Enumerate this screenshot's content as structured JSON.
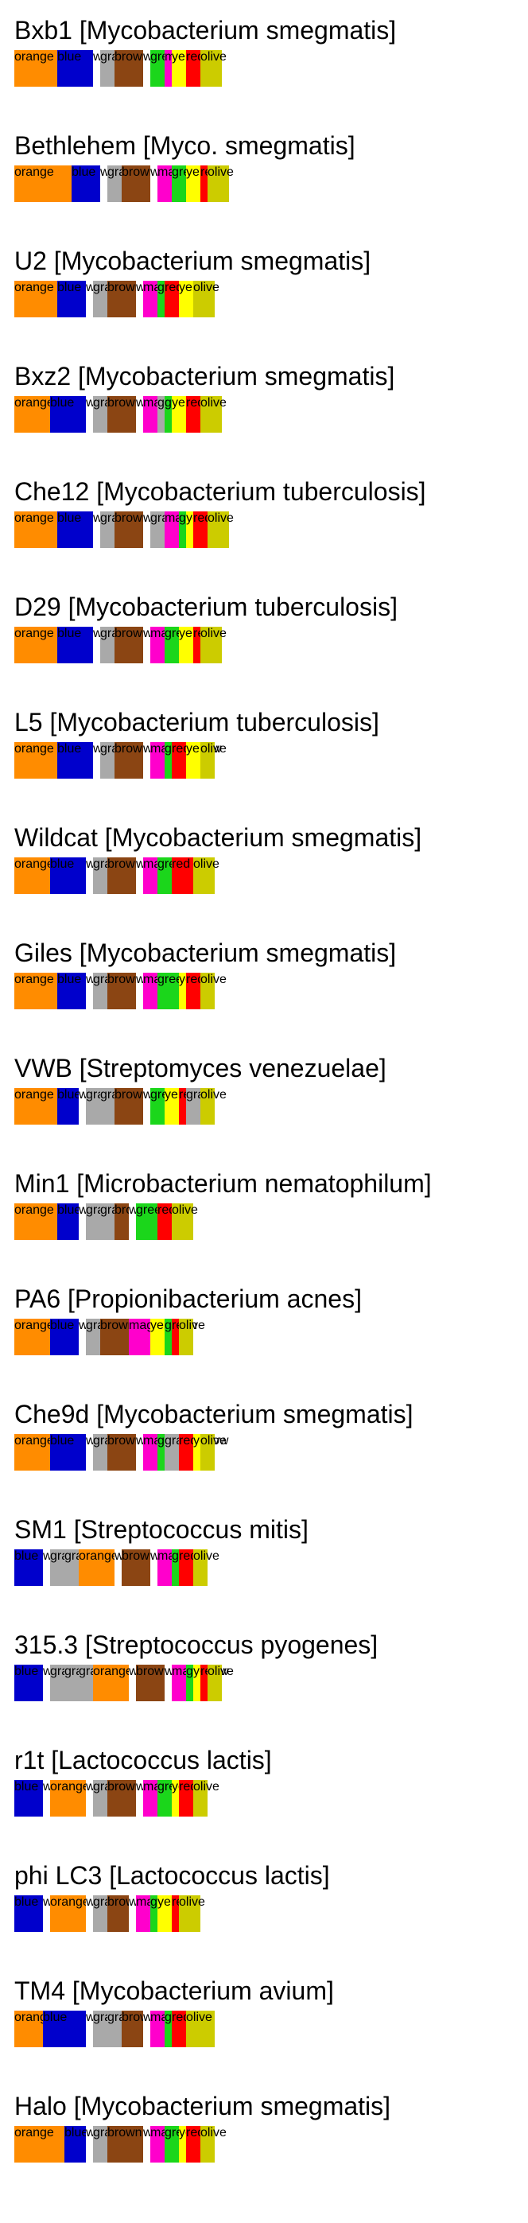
{
  "unit_width": 9,
  "colors": {
    "orange": "#ff8c00",
    "blue": "#0000cc",
    "gray": "#a9a9a9",
    "brown": "#8b4513",
    "magenta": "#ff00cc",
    "green": "#1bd61b",
    "yellow": "#ffff00",
    "red": "#ff0000",
    "olive": "#cccc00",
    "white": "#ffffff"
  },
  "entries": [
    {
      "name": "Bxb1",
      "host": "[Mycobacterium smegmatis]",
      "segments": [
        {
          "c": "orange",
          "w": 6
        },
        {
          "c": "blue",
          "w": 5
        },
        {
          "c": "white",
          "w": 1
        },
        {
          "c": "gray",
          "w": 2
        },
        {
          "c": "brown",
          "w": 4
        },
        {
          "c": "white",
          "w": 1
        },
        {
          "c": "green",
          "w": 2
        },
        {
          "c": "magenta",
          "w": 1
        },
        {
          "c": "yellow",
          "w": 2
        },
        {
          "c": "red",
          "w": 2
        },
        {
          "c": "olive",
          "w": 3
        }
      ]
    },
    {
      "name": "Bethlehem",
      "host": "[Myco. smegmatis]",
      "segments": [
        {
          "c": "orange",
          "w": 8
        },
        {
          "c": "blue",
          "w": 4
        },
        {
          "c": "white",
          "w": 1
        },
        {
          "c": "gray",
          "w": 2
        },
        {
          "c": "brown",
          "w": 4
        },
        {
          "c": "white",
          "w": 1
        },
        {
          "c": "magenta",
          "w": 2
        },
        {
          "c": "green",
          "w": 2
        },
        {
          "c": "yellow",
          "w": 2
        },
        {
          "c": "red",
          "w": 1
        },
        {
          "c": "olive",
          "w": 3
        }
      ]
    },
    {
      "name": "U2",
      "host": "[Mycobacterium smegmatis]",
      "segments": [
        {
          "c": "orange",
          "w": 6
        },
        {
          "c": "blue",
          "w": 4
        },
        {
          "c": "white",
          "w": 1
        },
        {
          "c": "gray",
          "w": 2
        },
        {
          "c": "brown",
          "w": 4
        },
        {
          "c": "white",
          "w": 1
        },
        {
          "c": "magenta",
          "w": 2
        },
        {
          "c": "green",
          "w": 1
        },
        {
          "c": "red",
          "w": 2
        },
        {
          "c": "yellow",
          "w": 2
        },
        {
          "c": "olive",
          "w": 3
        }
      ]
    },
    {
      "name": "Bxz2",
      "host": "[Mycobacterium smegmatis]",
      "segments": [
        {
          "c": "orange",
          "w": 5
        },
        {
          "c": "blue",
          "w": 5
        },
        {
          "c": "white",
          "w": 1
        },
        {
          "c": "gray",
          "w": 2
        },
        {
          "c": "brown",
          "w": 4
        },
        {
          "c": "white",
          "w": 1
        },
        {
          "c": "magenta",
          "w": 2
        },
        {
          "c": "gray",
          "w": 1
        },
        {
          "c": "green",
          "w": 1
        },
        {
          "c": "yellow",
          "w": 2
        },
        {
          "c": "red",
          "w": 2
        },
        {
          "c": "olive",
          "w": 3
        }
      ]
    },
    {
      "name": "Che12",
      "host": "[Mycobacterium tuberculosis]",
      "segments": [
        {
          "c": "orange",
          "w": 6
        },
        {
          "c": "blue",
          "w": 5
        },
        {
          "c": "white",
          "w": 1
        },
        {
          "c": "gray",
          "w": 2
        },
        {
          "c": "brown",
          "w": 4
        },
        {
          "c": "white",
          "w": 1
        },
        {
          "c": "gray",
          "w": 2
        },
        {
          "c": "magenta",
          "w": 2
        },
        {
          "c": "green",
          "w": 1
        },
        {
          "c": "yellow",
          "w": 1
        },
        {
          "c": "red",
          "w": 2
        },
        {
          "c": "olive",
          "w": 3
        }
      ]
    },
    {
      "name": "D29",
      "host": "[Mycobacterium tuberculosis]",
      "segments": [
        {
          "c": "orange",
          "w": 6
        },
        {
          "c": "blue",
          "w": 5
        },
        {
          "c": "white",
          "w": 1
        },
        {
          "c": "gray",
          "w": 2
        },
        {
          "c": "brown",
          "w": 4
        },
        {
          "c": "white",
          "w": 1
        },
        {
          "c": "magenta",
          "w": 2
        },
        {
          "c": "green",
          "w": 2
        },
        {
          "c": "yellow",
          "w": 2
        },
        {
          "c": "red",
          "w": 1
        },
        {
          "c": "olive",
          "w": 3
        }
      ]
    },
    {
      "name": "L5",
      "host": "[Mycobacterium tuberculosis]",
      "segments": [
        {
          "c": "orange",
          "w": 6
        },
        {
          "c": "blue",
          "w": 5
        },
        {
          "c": "white",
          "w": 1
        },
        {
          "c": "gray",
          "w": 2
        },
        {
          "c": "brown",
          "w": 4
        },
        {
          "c": "white",
          "w": 1
        },
        {
          "c": "magenta",
          "w": 2
        },
        {
          "c": "green",
          "w": 1
        },
        {
          "c": "red",
          "w": 2
        },
        {
          "c": "yellow",
          "w": 2
        },
        {
          "c": "olive",
          "w": 2
        }
      ]
    },
    {
      "name": "Wildcat",
      "host": "[Mycobacterium smegmatis]",
      "segments": [
        {
          "c": "orange",
          "w": 5
        },
        {
          "c": "blue",
          "w": 5
        },
        {
          "c": "white",
          "w": 1
        },
        {
          "c": "gray",
          "w": 2
        },
        {
          "c": "brown",
          "w": 4
        },
        {
          "c": "white",
          "w": 1
        },
        {
          "c": "magenta",
          "w": 2
        },
        {
          "c": "green",
          "w": 2
        },
        {
          "c": "red",
          "w": 3
        },
        {
          "c": "olive",
          "w": 3
        }
      ]
    },
    {
      "name": "Giles",
      "host": "[Mycobacterium smegmatis]",
      "segments": [
        {
          "c": "orange",
          "w": 6
        },
        {
          "c": "blue",
          "w": 4
        },
        {
          "c": "white",
          "w": 1
        },
        {
          "c": "gray",
          "w": 2
        },
        {
          "c": "brown",
          "w": 4
        },
        {
          "c": "white",
          "w": 1
        },
        {
          "c": "magenta",
          "w": 2
        },
        {
          "c": "green",
          "w": 3
        },
        {
          "c": "yellow",
          "w": 1
        },
        {
          "c": "red",
          "w": 2
        },
        {
          "c": "olive",
          "w": 2
        }
      ]
    },
    {
      "name": "VWB",
      "host": "[Streptomyces venezuelae]",
      "segments": [
        {
          "c": "orange",
          "w": 6
        },
        {
          "c": "blue",
          "w": 3
        },
        {
          "c": "white",
          "w": 1
        },
        {
          "c": "gray",
          "w": 2
        },
        {
          "c": "gray",
          "w": 2
        },
        {
          "c": "brown",
          "w": 4
        },
        {
          "c": "white",
          "w": 1
        },
        {
          "c": "green",
          "w": 2
        },
        {
          "c": "yellow",
          "w": 2
        },
        {
          "c": "red",
          "w": 1
        },
        {
          "c": "gray",
          "w": 2
        },
        {
          "c": "olive",
          "w": 2
        }
      ]
    },
    {
      "name": "Min1",
      "host": "[Microbacterium nematophilum]",
      "segments": [
        {
          "c": "orange",
          "w": 6
        },
        {
          "c": "blue",
          "w": 3
        },
        {
          "c": "white",
          "w": 1
        },
        {
          "c": "gray",
          "w": 2
        },
        {
          "c": "gray",
          "w": 2
        },
        {
          "c": "brown",
          "w": 2
        },
        {
          "c": "white",
          "w": 1
        },
        {
          "c": "green",
          "w": 3
        },
        {
          "c": "red",
          "w": 2
        },
        {
          "c": "olive",
          "w": 3
        }
      ]
    },
    {
      "name": "PA6",
      "host": "[Propionibacterium acnes]",
      "segments": [
        {
          "c": "orange",
          "w": 5
        },
        {
          "c": "blue",
          "w": 4
        },
        {
          "c": "white",
          "w": 1
        },
        {
          "c": "gray",
          "w": 2
        },
        {
          "c": "brown",
          "w": 4
        },
        {
          "c": "magenta",
          "w": 3
        },
        {
          "c": "yellow",
          "w": 2
        },
        {
          "c": "green",
          "w": 1
        },
        {
          "c": "red",
          "w": 1
        },
        {
          "c": "olive",
          "w": 2
        }
      ]
    },
    {
      "name": "Che9d",
      "host": "[Mycobacterium smegmatis]",
      "segments": [
        {
          "c": "orange",
          "w": 5
        },
        {
          "c": "blue",
          "w": 5
        },
        {
          "c": "white",
          "w": 1
        },
        {
          "c": "gray",
          "w": 2
        },
        {
          "c": "brown",
          "w": 4
        },
        {
          "c": "white",
          "w": 1
        },
        {
          "c": "magenta",
          "w": 2
        },
        {
          "c": "green",
          "w": 1
        },
        {
          "c": "gray",
          "w": 2
        },
        {
          "c": "red",
          "w": 2
        },
        {
          "c": "yellow",
          "w": 1
        },
        {
          "c": "olive",
          "w": 2
        }
      ]
    },
    {
      "name": "SM1",
      "host": "[Streptococcus mitis]",
      "segments": [
        {
          "c": "blue",
          "w": 4
        },
        {
          "c": "white",
          "w": 1
        },
        {
          "c": "gray",
          "w": 2
        },
        {
          "c": "gray",
          "w": 2
        },
        {
          "c": "orange",
          "w": 5
        },
        {
          "c": "white",
          "w": 1
        },
        {
          "c": "brown",
          "w": 4
        },
        {
          "c": "white",
          "w": 1
        },
        {
          "c": "magenta",
          "w": 2
        },
        {
          "c": "green",
          "w": 1
        },
        {
          "c": "red",
          "w": 2
        },
        {
          "c": "olive",
          "w": 2
        }
      ]
    },
    {
      "name": "315.3",
      "host": "[Streptococcus pyogenes]",
      "segments": [
        {
          "c": "blue",
          "w": 4
        },
        {
          "c": "white",
          "w": 1
        },
        {
          "c": "gray",
          "w": 2
        },
        {
          "c": "gray",
          "w": 2
        },
        {
          "c": "gray",
          "w": 2
        },
        {
          "c": "orange",
          "w": 5
        },
        {
          "c": "white",
          "w": 1
        },
        {
          "c": "brown",
          "w": 4
        },
        {
          "c": "white",
          "w": 1
        },
        {
          "c": "magenta",
          "w": 2
        },
        {
          "c": "green",
          "w": 1
        },
        {
          "c": "yellow",
          "w": 1
        },
        {
          "c": "red",
          "w": 1
        },
        {
          "c": "olive",
          "w": 2
        }
      ]
    },
    {
      "name": "r1t",
      "host": "[Lactococcus lactis]",
      "segments": [
        {
          "c": "blue",
          "w": 4
        },
        {
          "c": "white",
          "w": 1
        },
        {
          "c": "orange",
          "w": 5
        },
        {
          "c": "white",
          "w": 1
        },
        {
          "c": "gray",
          "w": 2
        },
        {
          "c": "brown",
          "w": 4
        },
        {
          "c": "white",
          "w": 1
        },
        {
          "c": "magenta",
          "w": 2
        },
        {
          "c": "green",
          "w": 2
        },
        {
          "c": "yellow",
          "w": 1
        },
        {
          "c": "red",
          "w": 2
        },
        {
          "c": "olive",
          "w": 2
        }
      ]
    },
    {
      "name": "phi LC3",
      "host": "[Lactococcus lactis]",
      "segments": [
        {
          "c": "blue",
          "w": 4
        },
        {
          "c": "white",
          "w": 1
        },
        {
          "c": "orange",
          "w": 5
        },
        {
          "c": "white",
          "w": 1
        },
        {
          "c": "gray",
          "w": 2
        },
        {
          "c": "brown",
          "w": 3
        },
        {
          "c": "white",
          "w": 1
        },
        {
          "c": "magenta",
          "w": 2
        },
        {
          "c": "green",
          "w": 1
        },
        {
          "c": "yellow",
          "w": 2
        },
        {
          "c": "red",
          "w": 1
        },
        {
          "c": "olive",
          "w": 3
        }
      ]
    },
    {
      "name": "TM4",
      "host": "[Mycobacterium avium]",
      "segments": [
        {
          "c": "orange",
          "w": 4
        },
        {
          "c": "blue",
          "w": 6
        },
        {
          "c": "white",
          "w": 1
        },
        {
          "c": "gray",
          "w": 2
        },
        {
          "c": "gray",
          "w": 2
        },
        {
          "c": "brown",
          "w": 3
        },
        {
          "c": "white",
          "w": 1
        },
        {
          "c": "magenta",
          "w": 2
        },
        {
          "c": "green",
          "w": 1
        },
        {
          "c": "red",
          "w": 2
        },
        {
          "c": "olive",
          "w": 4
        }
      ]
    },
    {
      "name": "Halo",
      "host": "[Mycobacterium smegmatis]",
      "segments": [
        {
          "c": "orange",
          "w": 7
        },
        {
          "c": "blue",
          "w": 3
        },
        {
          "c": "white",
          "w": 1
        },
        {
          "c": "gray",
          "w": 2
        },
        {
          "c": "brown",
          "w": 5
        },
        {
          "c": "white",
          "w": 1
        },
        {
          "c": "magenta",
          "w": 2
        },
        {
          "c": "green",
          "w": 2
        },
        {
          "c": "yellow",
          "w": 1
        },
        {
          "c": "red",
          "w": 2
        },
        {
          "c": "olive",
          "w": 2
        }
      ]
    }
  ]
}
